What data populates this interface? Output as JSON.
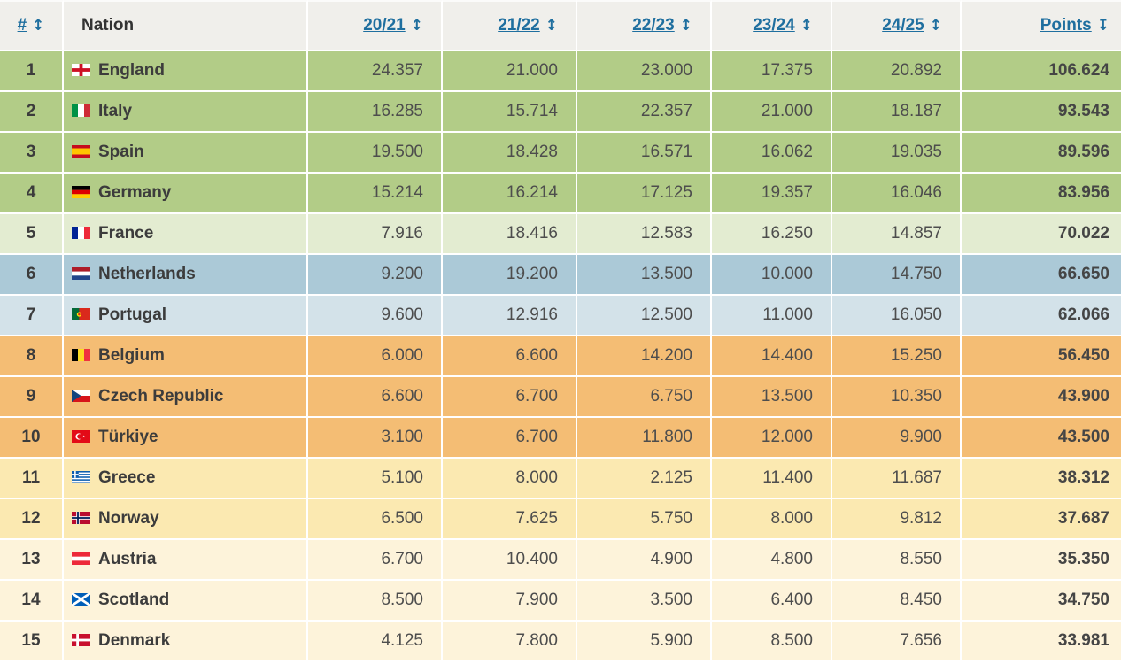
{
  "colors": {
    "link": "#1f6f9f",
    "header_bg": "#f0efeb",
    "tiers": {
      "green": "#b2cc87",
      "pale_green": "#e3ecd1",
      "blue": "#abc9d7",
      "light_blue": "#d3e2e9",
      "orange": "#f4bd74",
      "yellow": "#fbe9b1",
      "cream": "#fdf3da"
    }
  },
  "icons": {
    "sort_updown": "↕",
    "sort_down": "↧"
  },
  "table": {
    "columns": [
      {
        "key": "rank",
        "label": "#",
        "sortable": true,
        "sort": "updown",
        "align": "center"
      },
      {
        "key": "nation",
        "label": "Nation",
        "sortable": false,
        "align": "left"
      },
      {
        "key": "s2021",
        "label": "20/21",
        "sortable": true,
        "sort": "updown",
        "align": "right"
      },
      {
        "key": "s2122",
        "label": "21/22",
        "sortable": true,
        "sort": "updown",
        "align": "right"
      },
      {
        "key": "s2223",
        "label": "22/23",
        "sortable": true,
        "sort": "updown",
        "align": "right"
      },
      {
        "key": "s2324",
        "label": "23/24",
        "sortable": true,
        "sort": "updown",
        "align": "right"
      },
      {
        "key": "s2425",
        "label": "24/25",
        "sortable": true,
        "sort": "updown",
        "align": "right"
      },
      {
        "key": "points",
        "label": "Points",
        "sortable": true,
        "sort": "down",
        "align": "right"
      }
    ],
    "rows": [
      {
        "rank": "1",
        "nation": "England",
        "flag": "england",
        "tier": "green",
        "values": [
          "24.357",
          "21.000",
          "23.000",
          "17.375",
          "20.892"
        ],
        "points": "106.624"
      },
      {
        "rank": "2",
        "nation": "Italy",
        "flag": "italy",
        "tier": "green",
        "values": [
          "16.285",
          "15.714",
          "22.357",
          "21.000",
          "18.187"
        ],
        "points": "93.543"
      },
      {
        "rank": "3",
        "nation": "Spain",
        "flag": "spain",
        "tier": "green",
        "values": [
          "19.500",
          "18.428",
          "16.571",
          "16.062",
          "19.035"
        ],
        "points": "89.596"
      },
      {
        "rank": "4",
        "nation": "Germany",
        "flag": "germany",
        "tier": "green",
        "values": [
          "15.214",
          "16.214",
          "17.125",
          "19.357",
          "16.046"
        ],
        "points": "83.956"
      },
      {
        "rank": "5",
        "nation": "France",
        "flag": "france",
        "tier": "pale_green",
        "values": [
          "7.916",
          "18.416",
          "12.583",
          "16.250",
          "14.857"
        ],
        "points": "70.022"
      },
      {
        "rank": "6",
        "nation": "Netherlands",
        "flag": "netherlands",
        "tier": "blue",
        "values": [
          "9.200",
          "19.200",
          "13.500",
          "10.000",
          "14.750"
        ],
        "points": "66.650"
      },
      {
        "rank": "7",
        "nation": "Portugal",
        "flag": "portugal",
        "tier": "light_blue",
        "values": [
          "9.600",
          "12.916",
          "12.500",
          "11.000",
          "16.050"
        ],
        "points": "62.066"
      },
      {
        "rank": "8",
        "nation": "Belgium",
        "flag": "belgium",
        "tier": "orange",
        "values": [
          "6.000",
          "6.600",
          "14.200",
          "14.400",
          "15.250"
        ],
        "points": "56.450"
      },
      {
        "rank": "9",
        "nation": "Czech Republic",
        "flag": "czech",
        "tier": "orange",
        "values": [
          "6.600",
          "6.700",
          "6.750",
          "13.500",
          "10.350"
        ],
        "points": "43.900"
      },
      {
        "rank": "10",
        "nation": "Türkiye",
        "flag": "turkiye",
        "tier": "orange",
        "values": [
          "3.100",
          "6.700",
          "11.800",
          "12.000",
          "9.900"
        ],
        "points": "43.500"
      },
      {
        "rank": "11",
        "nation": "Greece",
        "flag": "greece",
        "tier": "yellow",
        "values": [
          "5.100",
          "8.000",
          "2.125",
          "11.400",
          "11.687"
        ],
        "points": "38.312"
      },
      {
        "rank": "12",
        "nation": "Norway",
        "flag": "norway",
        "tier": "yellow",
        "values": [
          "6.500",
          "7.625",
          "5.750",
          "8.000",
          "9.812"
        ],
        "points": "37.687"
      },
      {
        "rank": "13",
        "nation": "Austria",
        "flag": "austria",
        "tier": "cream",
        "values": [
          "6.700",
          "10.400",
          "4.900",
          "4.800",
          "8.550"
        ],
        "points": "35.350"
      },
      {
        "rank": "14",
        "nation": "Scotland",
        "flag": "scotland",
        "tier": "cream",
        "values": [
          "8.500",
          "7.900",
          "3.500",
          "6.400",
          "8.450"
        ],
        "points": "34.750"
      },
      {
        "rank": "15",
        "nation": "Denmark",
        "flag": "denmark",
        "tier": "cream",
        "values": [
          "4.125",
          "7.800",
          "5.900",
          "8.500",
          "7.656"
        ],
        "points": "33.981"
      }
    ]
  }
}
